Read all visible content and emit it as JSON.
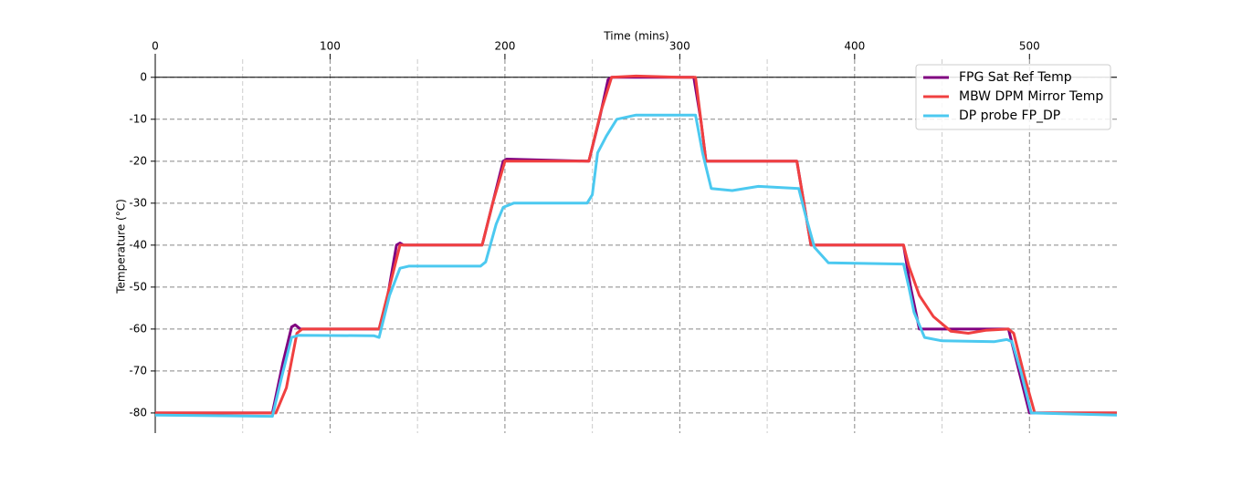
{
  "chart_data": {
    "type": "line",
    "xlabel": "Time (mins)",
    "ylabel": "Temperature (°C)",
    "xlim": [
      0,
      550
    ],
    "xticks": [
      0,
      100,
      200,
      300,
      400,
      500
    ],
    "xminorticks": [
      50,
      150,
      250,
      350,
      450
    ],
    "ylim": [
      -84.8,
      4.3
    ],
    "yticks": [
      0,
      -10,
      -20,
      -30,
      -40,
      -50,
      -60,
      -70,
      -80
    ],
    "grid": true,
    "zero_line": true,
    "legend": "upper right",
    "series": [
      {
        "name": "FPG Sat Ref Temp",
        "color": "#800080",
        "x": [
          0,
          67,
          73,
          78,
          80,
          83,
          128,
          133,
          138,
          140,
          142,
          187,
          193,
          199,
          201,
          248,
          254,
          259,
          261,
          308,
          312,
          315,
          367,
          371,
          375,
          428,
          432,
          437,
          488,
          494,
          500,
          550
        ],
        "values": [
          -80,
          -80,
          -68,
          -59.5,
          -59,
          -60,
          -60,
          -52,
          -40,
          -39.5,
          -40,
          -40,
          -30,
          -20,
          -19.5,
          -20,
          -10,
          -0.5,
          0,
          0,
          -10,
          -20,
          -20,
          -30,
          -40,
          -40,
          -50,
          -60,
          -60,
          -70,
          -80,
          -80
        ]
      },
      {
        "name": "MBW DPM Mirror Temp",
        "color": "#f04040",
        "x": [
          0,
          69,
          75,
          81,
          84,
          128,
          134,
          140,
          143,
          187,
          193,
          200,
          248,
          255,
          261,
          275,
          300,
          309,
          315,
          367,
          375,
          428,
          431,
          437,
          445,
          455,
          465,
          475,
          488,
          491,
          497,
          503,
          550
        ],
        "values": [
          -80,
          -80,
          -74,
          -61,
          -60,
          -60,
          -50,
          -40,
          -40,
          -40,
          -30,
          -20,
          -20,
          -8,
          0,
          0.3,
          0,
          0,
          -20,
          -20,
          -40,
          -40,
          -45,
          -52,
          -57,
          -60.5,
          -61,
          -60.3,
          -60,
          -61,
          -71,
          -80,
          -80
        ]
      },
      {
        "name": "DP probe FP_DP",
        "color": "#4cc9f0",
        "x": [
          0,
          67,
          72,
          78,
          82,
          125,
          128,
          134,
          140,
          145,
          186,
          189,
          195,
          199,
          205,
          247,
          250,
          253,
          258,
          264,
          275,
          309,
          313,
          318,
          330,
          345,
          368,
          372,
          377,
          385,
          428,
          431,
          434,
          440,
          450,
          480,
          487,
          490,
          495,
          501,
          550
        ],
        "values": [
          -80.5,
          -80.8,
          -72,
          -62,
          -61.5,
          -61.6,
          -62,
          -52,
          -45.5,
          -45,
          -45,
          -44,
          -35,
          -31,
          -30,
          -30,
          -28,
          -18,
          -14,
          -10,
          -9,
          -9,
          -18,
          -26.5,
          -27,
          -26,
          -26.5,
          -33,
          -40.5,
          -44.2,
          -44.5,
          -50,
          -56,
          -62,
          -62.8,
          -63,
          -62.5,
          -63,
          -70,
          -80,
          -80.5
        ]
      }
    ]
  }
}
